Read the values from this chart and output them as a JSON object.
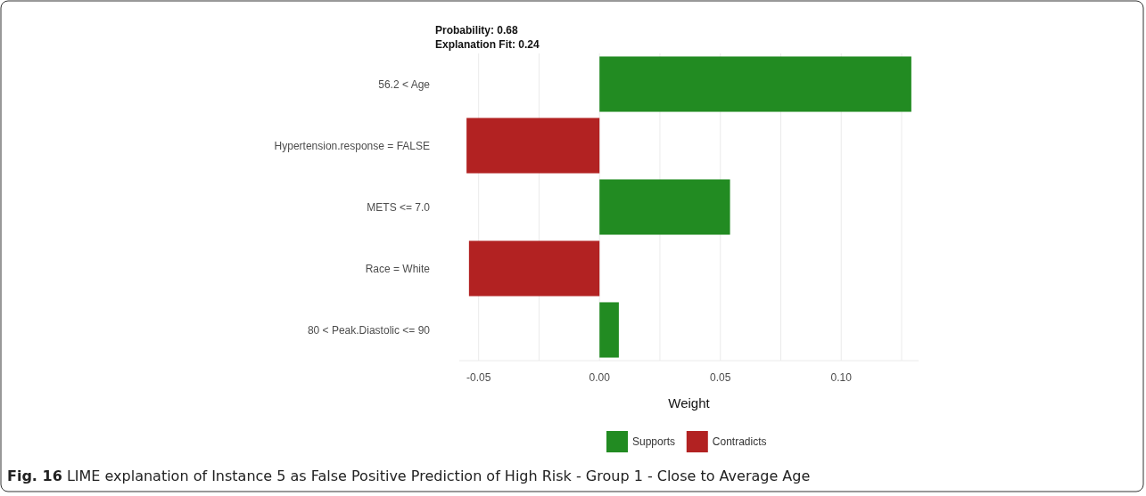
{
  "chart_data": {
    "type": "bar",
    "orientation": "horizontal",
    "title": "Probability: 0.68",
    "subtitle": "Explanation Fit: 0.24",
    "xlabel": "Weight",
    "categories": [
      "56.2 < Age",
      "Hypertension.response = FALSE",
      "METS <= 7.0",
      "Race = White",
      "80 < Peak.Diastolic <= 90"
    ],
    "series": [
      {
        "name": "Supports",
        "color": "#228b22",
        "values": [
          0.129,
          null,
          0.054,
          null,
          0.008
        ]
      },
      {
        "name": "Contradicts",
        "color": "#b22222",
        "values": [
          null,
          -0.055,
          null,
          -0.054,
          null
        ]
      }
    ],
    "xlim": [
      -0.058,
      0.132
    ],
    "xticks": [
      -0.05,
      {
        "value": -0.025,
        "label": null
      },
      {
        "value": 0,
        "label": "0.00"
      },
      {
        "value": 0.025,
        "label": null
      },
      0.05,
      {
        "value": 0.075,
        "label": null
      },
      {
        "value": 0.1,
        "label": "0.10"
      },
      {
        "value": 0.125,
        "label": null
      }
    ],
    "grid": "x",
    "legend": "bottom",
    "annotations": [
      "Fig. 16 LIME explanation of Instance 5 as False Positive Prediction of High Risk - Group 1 - Close to Average Age"
    ]
  }
}
